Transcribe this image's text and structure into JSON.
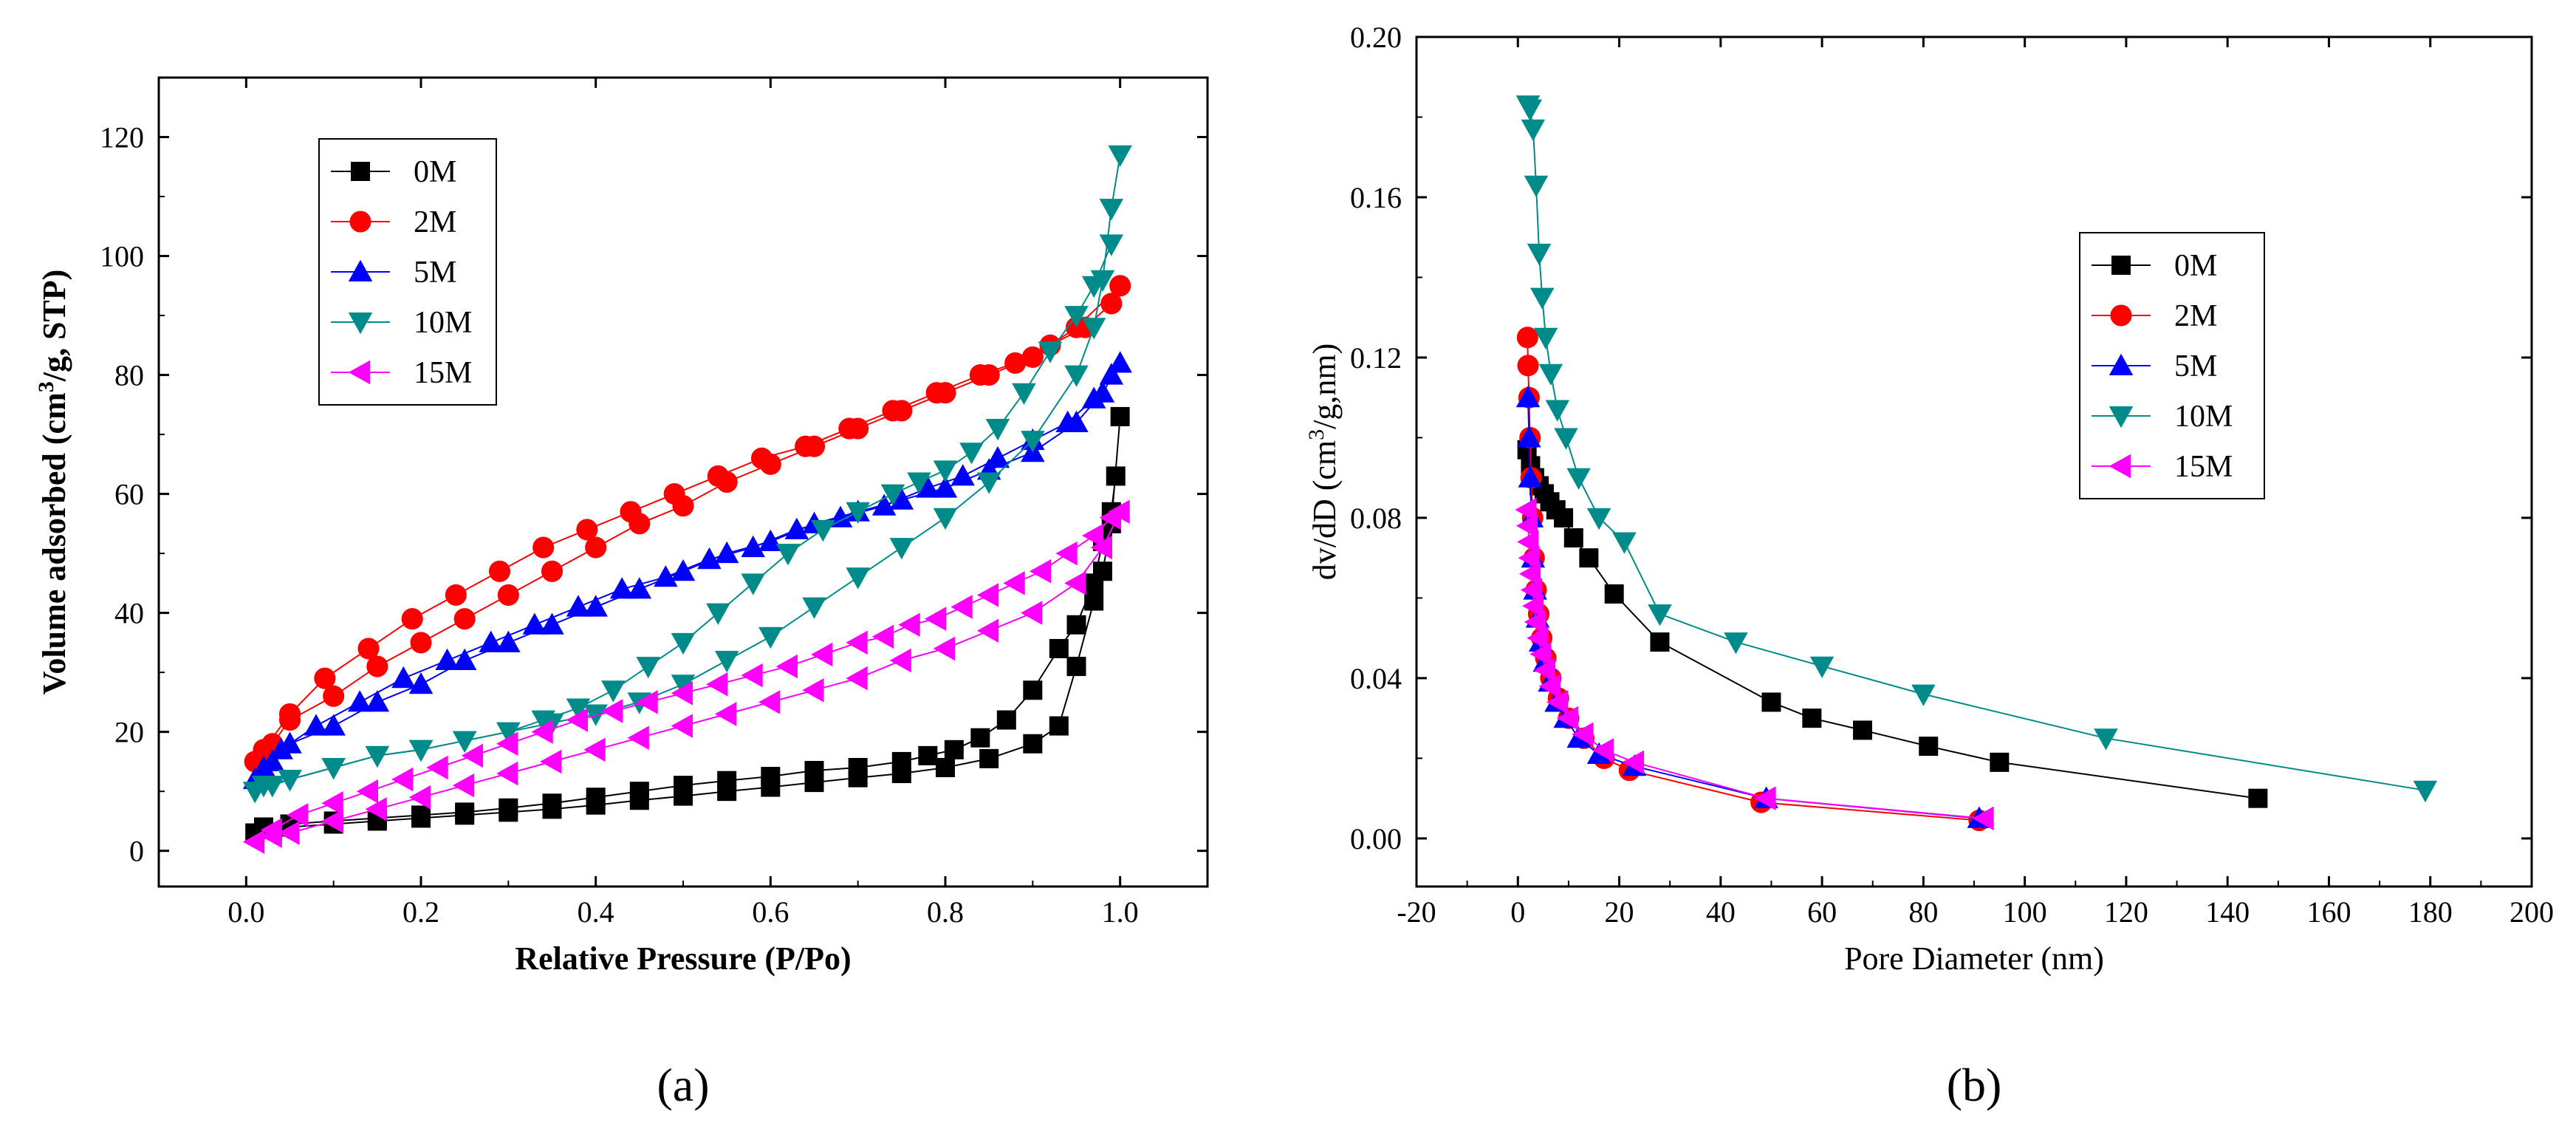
{
  "chart_data": [
    {
      "type": "line",
      "panel_label": "(a)",
      "title": "",
      "xlabel": "Relative Pressure (P/Po)",
      "ylabel_parts": [
        "Volume adsorbed (cm",
        "3",
        "/g, STP)"
      ],
      "xlim": [
        -0.1,
        1.1
      ],
      "ylim": [
        -6,
        130
      ],
      "xticks": [
        0.0,
        0.2,
        0.4,
        0.6,
        0.8,
        1.0
      ],
      "xtick_labels": [
        "0.0",
        "0.2",
        "0.4",
        "0.6",
        "0.8",
        "1.0"
      ],
      "yticks": [
        0,
        20,
        40,
        60,
        80,
        100,
        120
      ],
      "ytick_labels": [
        "0",
        "20",
        "40",
        "60",
        "80",
        "100",
        "120"
      ],
      "grid": false,
      "legend_position": "top-left",
      "series": [
        {
          "name": "0M",
          "color": "#000000",
          "marker": "square",
          "adsorption": {
            "x": [
              0.01,
              0.05,
              0.1,
              0.15,
              0.2,
              0.25,
              0.3,
              0.35,
              0.4,
              0.45,
              0.5,
              0.55,
              0.6,
              0.65,
              0.7,
              0.75,
              0.8,
              0.85,
              0.9,
              0.93,
              0.95,
              0.97,
              0.98,
              0.99,
              1.0
            ],
            "y": [
              3,
              4,
              4.5,
              5,
              5.5,
              6,
              6.5,
              7,
              7.7,
              8.5,
              9.2,
              10,
              10.7,
              11.5,
              12.3,
              13,
              14,
              15.5,
              18,
              21,
              31,
              42,
              47,
              55,
              73
            ]
          },
          "desorption": {
            "x": [
              0.995,
              0.99,
              0.98,
              0.97,
              0.95,
              0.93,
              0.9,
              0.87,
              0.84,
              0.81,
              0.78,
              0.75,
              0.7,
              0.65,
              0.6,
              0.55,
              0.5,
              0.45,
              0.4,
              0.35,
              0.3,
              0.25,
              0.2,
              0.15,
              0.1,
              0.05,
              0.02
            ],
            "y": [
              63,
              57,
              52,
              45,
              38,
              34,
              27,
              22,
              19,
              17,
              16,
              15,
              14,
              13.5,
              12.5,
              11.8,
              11,
              10,
              9,
              8,
              7.2,
              6.5,
              6,
              5.5,
              5,
              4.5,
              4
            ]
          }
        },
        {
          "name": "2M",
          "color": "#ff0000",
          "marker": "circle",
          "adsorption": {
            "x": [
              0.01,
              0.03,
              0.05,
              0.1,
              0.15,
              0.2,
              0.25,
              0.3,
              0.35,
              0.4,
              0.45,
              0.5,
              0.55,
              0.6,
              0.65,
              0.7,
              0.75,
              0.8,
              0.85,
              0.9,
              0.95,
              1.0
            ],
            "y": [
              15,
              18,
              22,
              26,
              31,
              35,
              39,
              43,
              47,
              51,
              55,
              58,
              62,
              65,
              68,
              71,
              74,
              77,
              80,
              83,
              88,
              95
            ]
          },
          "desorption": {
            "x": [
              0.99,
              0.96,
              0.92,
              0.88,
              0.84,
              0.79,
              0.74,
              0.69,
              0.64,
              0.59,
              0.54,
              0.49,
              0.44,
              0.39,
              0.34,
              0.29,
              0.24,
              0.19,
              0.14,
              0.09,
              0.05,
              0.02
            ],
            "y": [
              92,
              88,
              85,
              82,
              80,
              77,
              74,
              71,
              68,
              66,
              63,
              60,
              57,
              54,
              51,
              47,
              43,
              39,
              34,
              29,
              23,
              17
            ]
          }
        },
        {
          "name": "5M",
          "color": "#0000ff",
          "marker": "triangle-up",
          "adsorption": {
            "x": [
              0.01,
              0.03,
              0.05,
              0.1,
              0.15,
              0.2,
              0.25,
              0.3,
              0.35,
              0.4,
              0.45,
              0.5,
              0.55,
              0.6,
              0.65,
              0.7,
              0.75,
              0.8,
              0.85,
              0.9,
              0.95,
              0.98,
              1.0
            ],
            "y": [
              12,
              15,
              18,
              21,
              25,
              28,
              32,
              35,
              38,
              41,
              44,
              47,
              50,
              52,
              55,
              57,
              59,
              61,
              64,
              67,
              72,
              77,
              82
            ]
          },
          "desorption": {
            "x": [
              0.99,
              0.97,
              0.94,
              0.9,
              0.86,
              0.82,
              0.78,
              0.73,
              0.68,
              0.63,
              0.58,
              0.53,
              0.48,
              0.43,
              0.38,
              0.33,
              0.28,
              0.23,
              0.18,
              0.13,
              0.08,
              0.04,
              0.02
            ],
            "y": [
              80,
              76,
              72,
              69,
              66,
              63,
              61,
              58,
              56,
              54,
              51,
              49,
              46,
              44,
              41,
              38,
              35,
              32,
              29,
              25,
              21,
              17,
              14
            ]
          }
        },
        {
          "name": "10M",
          "color": "#008b8b",
          "marker": "triangle-down",
          "adsorption": {
            "x": [
              0.01,
              0.03,
              0.05,
              0.1,
              0.15,
              0.2,
              0.25,
              0.3,
              0.35,
              0.4,
              0.45,
              0.5,
              0.55,
              0.6,
              0.65,
              0.7,
              0.75,
              0.8,
              0.85,
              0.9,
              0.95,
              0.97,
              0.98,
              0.99,
              1.0
            ],
            "y": [
              10,
              11,
              12,
              14,
              16,
              17,
              18.5,
              20,
              21.5,
              23,
              25,
              28,
              32,
              36,
              41,
              46,
              51,
              56,
              62,
              69,
              80,
              88,
              96,
              108,
              117
            ]
          },
          "desorption": {
            "x": [
              0.99,
              0.97,
              0.95,
              0.92,
              0.89,
              0.86,
              0.83,
              0.8,
              0.77,
              0.74,
              0.7,
              0.66,
              0.62,
              0.58,
              0.54,
              0.5,
              0.46,
              0.42,
              0.38,
              0.34,
              0.3,
              0.25,
              0.2,
              0.15,
              0.1,
              0.05,
              0.02
            ],
            "y": [
              102,
              95,
              90,
              84,
              77,
              71,
              67,
              64,
              62,
              60,
              57,
              54,
              50,
              45,
              40,
              35,
              31,
              27,
              24,
              22,
              20,
              18.5,
              17,
              16,
              14,
              12,
              11
            ]
          }
        },
        {
          "name": "15M",
          "color": "#ff00ff",
          "marker": "triangle-left",
          "adsorption": {
            "x": [
              0.01,
              0.03,
              0.05,
              0.1,
              0.15,
              0.2,
              0.25,
              0.3,
              0.35,
              0.4,
              0.45,
              0.5,
              0.55,
              0.6,
              0.65,
              0.7,
              0.75,
              0.8,
              0.85,
              0.9,
              0.95,
              0.98,
              1.0
            ],
            "y": [
              1.5,
              2.5,
              3,
              5,
              7,
              9,
              11,
              13,
              15,
              17,
              19,
              21,
              23,
              25,
              27,
              29,
              32,
              34,
              37,
              40,
              45,
              51,
              57
            ]
          },
          "desorption": {
            "x": [
              0.99,
              0.97,
              0.94,
              0.91,
              0.88,
              0.85,
              0.82,
              0.79,
              0.76,
              0.73,
              0.7,
              0.66,
              0.62,
              0.58,
              0.54,
              0.5,
              0.46,
              0.42,
              0.38,
              0.34,
              0.3,
              0.26,
              0.22,
              0.18,
              0.14,
              0.1,
              0.06,
              0.03
            ],
            "y": [
              56,
              53,
              50,
              47,
              45,
              43,
              41,
              39,
              38,
              36,
              35,
              33,
              31,
              29.5,
              28,
              26.5,
              25,
              23.5,
              22,
              20,
              18,
              16,
              14,
              12,
              10,
              8,
              6,
              3.5
            ]
          }
        }
      ]
    },
    {
      "type": "line",
      "panel_label": "(b)",
      "title": "",
      "xlabel": "Pore Diameter (nm)",
      "ylabel_parts": [
        "dv/dD (cm",
        "3",
        "/g,nm)"
      ],
      "xlim": [
        -20,
        200
      ],
      "ylim": [
        -0.012,
        0.2
      ],
      "xticks": [
        -20,
        0,
        20,
        40,
        60,
        80,
        100,
        120,
        140,
        160,
        180,
        200
      ],
      "xtick_labels": [
        "-20",
        "0",
        "20",
        "40",
        "60",
        "80",
        "100",
        "120",
        "140",
        "160",
        "180",
        "200"
      ],
      "yticks": [
        0.0,
        0.04,
        0.08,
        0.12,
        0.16,
        0.2
      ],
      "ytick_labels": [
        "0.00",
        "0.04",
        "0.08",
        "0.12",
        "0.16",
        "0.20"
      ],
      "grid": false,
      "legend_position": "center-right",
      "series": [
        {
          "name": "0M",
          "color": "#000000",
          "marker": "square",
          "x": [
            1.8,
            2.5,
            3.3,
            4.2,
            5.2,
            6.3,
            7.5,
            9,
            11,
            14,
            19,
            28,
            50,
            58,
            68,
            81,
            95,
            146
          ],
          "y": [
            0.097,
            0.093,
            0.09,
            0.088,
            0.086,
            0.084,
            0.082,
            0.08,
            0.075,
            0.07,
            0.061,
            0.049,
            0.034,
            0.03,
            0.027,
            0.023,
            0.019,
            0.01
          ]
        },
        {
          "name": "2M",
          "color": "#ff0000",
          "marker": "circle",
          "x": [
            1.9,
            2,
            2.2,
            2.4,
            2.6,
            2.9,
            3.2,
            3.6,
            4.1,
            4.7,
            5.5,
            6.5,
            8,
            10,
            13,
            17,
            22,
            48,
            91
          ],
          "y": [
            0.125,
            0.118,
            0.11,
            0.1,
            0.09,
            0.08,
            0.07,
            0.062,
            0.056,
            0.05,
            0.045,
            0.04,
            0.035,
            0.03,
            0.025,
            0.02,
            0.017,
            0.009,
            0.0045
          ]
        },
        {
          "name": "5M",
          "color": "#0000ff",
          "marker": "triangle-up",
          "x": [
            2,
            2.2,
            2.4,
            2.7,
            3,
            3.4,
            3.9,
            4.5,
            5.3,
            6.3,
            7.6,
            9.4,
            12,
            16,
            23,
            49,
            91
          ],
          "y": [
            0.11,
            0.1,
            0.09,
            0.08,
            0.07,
            0.062,
            0.055,
            0.049,
            0.044,
            0.039,
            0.034,
            0.03,
            0.025,
            0.021,
            0.018,
            0.01,
            0.005
          ]
        },
        {
          "name": "10M",
          "color": "#008b8b",
          "marker": "triangle-down",
          "x": [
            2,
            2.4,
            3,
            3.6,
            4.2,
            4.8,
            5.5,
            6.5,
            7.8,
            9.5,
            12,
            16,
            21,
            28,
            43,
            60,
            80,
            116,
            179
          ],
          "y": [
            0.183,
            0.182,
            0.177,
            0.163,
            0.146,
            0.135,
            0.125,
            0.116,
            0.107,
            0.1,
            0.09,
            0.08,
            0.074,
            0.056,
            0.049,
            0.043,
            0.036,
            0.025,
            0.012
          ]
        },
        {
          "name": "15M",
          "color": "#ff00ff",
          "marker": "triangle-left",
          "x": [
            1.8,
            2,
            2.2,
            2.4,
            2.6,
            2.9,
            3.2,
            3.6,
            4.1,
            4.7,
            5.5,
            6.5,
            8,
            10,
            13,
            17,
            23,
            49,
            92
          ],
          "y": [
            0.082,
            0.078,
            0.074,
            0.07,
            0.066,
            0.062,
            0.058,
            0.054,
            0.05,
            0.046,
            0.042,
            0.038,
            0.034,
            0.03,
            0.026,
            0.022,
            0.019,
            0.01,
            0.005
          ]
        }
      ]
    }
  ]
}
